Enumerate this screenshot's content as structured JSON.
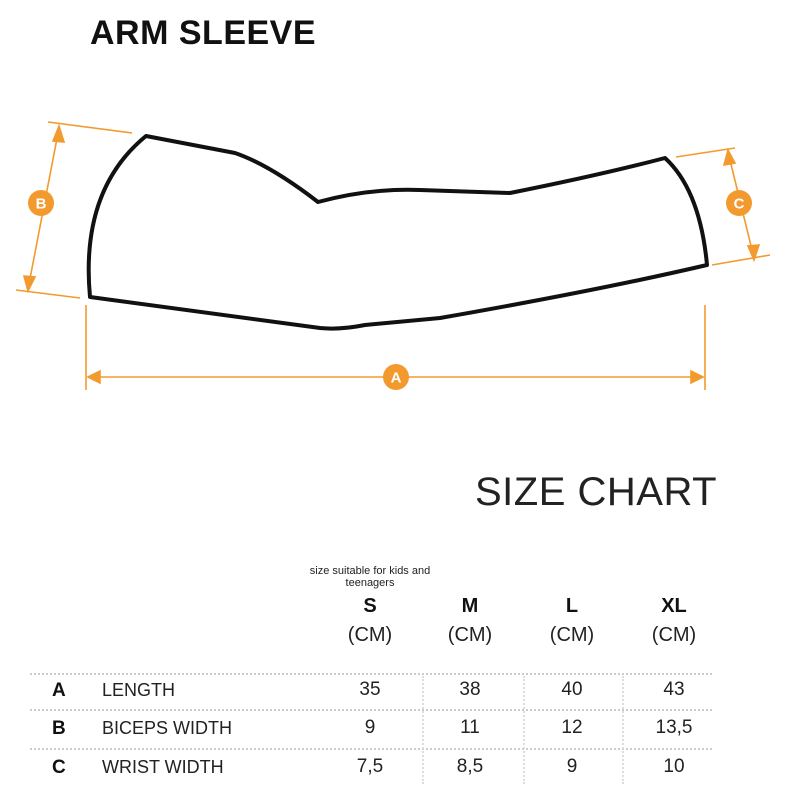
{
  "title": "ARM SLEEVE",
  "diagram": {
    "labels": {
      "a": "A",
      "b": "B",
      "c": "C"
    },
    "accent_color": "#f39a2e"
  },
  "size_chart": {
    "title": "SIZE CHART",
    "note": "size suitable for kids and teenagers",
    "columns": [
      {
        "size": "S",
        "unit": "(CM)"
      },
      {
        "size": "M",
        "unit": "(CM)"
      },
      {
        "size": "L",
        "unit": "(CM)"
      },
      {
        "size": "XL",
        "unit": "(CM)"
      }
    ],
    "rows": [
      {
        "letter": "A",
        "label": "LENGTH",
        "values": [
          "35",
          "38",
          "40",
          "43"
        ]
      },
      {
        "letter": "B",
        "label": "BICEPS WIDTH",
        "values": [
          "9",
          "11",
          "12",
          "13,5"
        ]
      },
      {
        "letter": "C",
        "label": "WRIST WIDTH",
        "values": [
          "7,5",
          "8,5",
          "9",
          "10"
        ]
      }
    ]
  }
}
